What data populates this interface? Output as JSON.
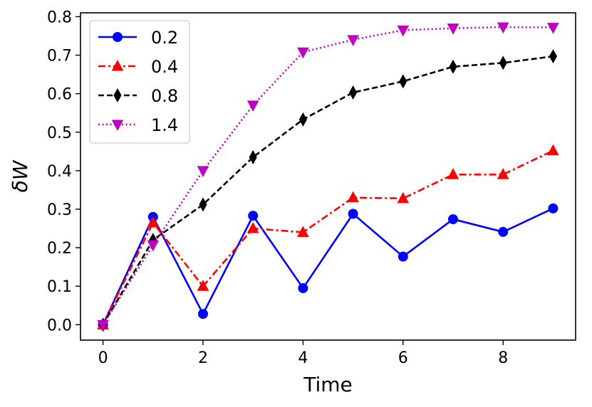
{
  "chart_data": {
    "type": "line",
    "title": "",
    "xlabel": "Time",
    "ylabel": "δW",
    "xlim": [
      -0.45,
      9.45
    ],
    "ylim": [
      -0.04,
      0.81
    ],
    "xticks": [
      0,
      2,
      4,
      6,
      8
    ],
    "xtick_labels": [
      "0",
      "2",
      "4",
      "6",
      "8"
    ],
    "yticks": [
      0.0,
      0.1,
      0.2,
      0.3,
      0.4,
      0.5,
      0.6,
      0.7,
      0.8
    ],
    "ytick_labels": [
      "0.0",
      "0.1",
      "0.2",
      "0.3",
      "0.4",
      "0.5",
      "0.6",
      "0.7",
      "0.8"
    ],
    "grid": false,
    "legend_position": "top-left",
    "x": [
      0,
      1,
      2,
      3,
      4,
      5,
      6,
      7,
      8,
      9
    ],
    "series": [
      {
        "name": "0.2",
        "color": "#0000ff",
        "linestyle": "solid",
        "marker": "circle",
        "values": [
          0.0,
          0.28,
          0.028,
          0.283,
          0.095,
          0.288,
          0.177,
          0.274,
          0.241,
          0.302
        ]
      },
      {
        "name": "0.4",
        "color": "#ff0000",
        "linestyle": "dashdot",
        "marker": "triangle-up",
        "values": [
          0.0,
          0.265,
          0.1,
          0.25,
          0.24,
          0.33,
          0.328,
          0.39,
          0.39,
          0.452
        ]
      },
      {
        "name": "0.8",
        "color": "#000000",
        "linestyle": "dashed",
        "marker": "thin-diamond",
        "values": [
          0.0,
          0.22,
          0.312,
          0.435,
          0.533,
          0.603,
          0.632,
          0.67,
          0.68,
          0.697
        ]
      },
      {
        "name": "1.4",
        "color": "#bf00bf",
        "linestyle": "dotted",
        "marker": "triangle-down",
        "values": [
          0.0,
          0.207,
          0.4,
          0.57,
          0.708,
          0.74,
          0.765,
          0.77,
          0.773,
          0.772
        ]
      }
    ]
  }
}
